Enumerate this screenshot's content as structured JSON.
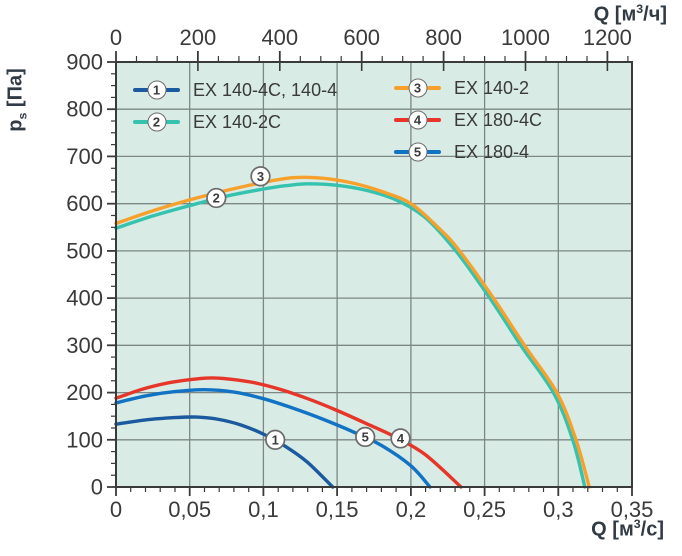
{
  "chart_data": {
    "type": "line",
    "description": "Fan performance curves: static pressure vs air flow",
    "plot_bg_color": "#d9ebe5",
    "grid_color": "#7c8786",
    "axis_color": "#3a3a3a",
    "tick_label_color": "#3a3a3a",
    "title_color": "#323b44",
    "grid": true,
    "y_axis": {
      "label": "pₛ [Па]",
      "label_parts": {
        "base": "p",
        "sub": "s",
        "rest": " [Па]"
      },
      "min": 0,
      "max": 900,
      "major": 100,
      "minor": 25,
      "tick_labels": [
        "0",
        "100",
        "200",
        "300",
        "400",
        "500",
        "600",
        "700",
        "800",
        "900"
      ]
    },
    "x_bottom": {
      "label": "Q [м³/с]",
      "label_parts": {
        "base": "Q [м",
        "sup": "3",
        "rest": "/с]"
      },
      "min": 0,
      "max": 0.35,
      "major": 0.05,
      "minor": 0.01,
      "tick_labels": [
        "0",
        "0,05",
        "0,1",
        "0,15",
        "0,2",
        "0,25",
        "0,3",
        "0,35"
      ]
    },
    "x_top": {
      "label": "Q [м³/ч]",
      "label_parts": {
        "base": "Q [м",
        "sup": "3",
        "rest": "/ч]"
      },
      "min": 0,
      "max": 1260,
      "major": 200,
      "minor": 50,
      "tick_labels": [
        "0",
        "200",
        "400",
        "600",
        "800",
        "1000",
        "1200"
      ]
    },
    "legend": {
      "position": "top-inside",
      "columns": [
        [
          0,
          1
        ],
        [
          2,
          3,
          4
        ]
      ]
    },
    "draw_order": [
      1,
      2,
      0,
      4,
      3
    ],
    "series": [
      {
        "num": "1",
        "label": "EX 140-4C, 140-4",
        "color": "#1b5a9e",
        "marker": {
          "x": 0.108,
          "y": 100
        },
        "points": [
          [
            0,
            133
          ],
          [
            0.02,
            142
          ],
          [
            0.04,
            147
          ],
          [
            0.055,
            148
          ],
          [
            0.07,
            143
          ],
          [
            0.085,
            131
          ],
          [
            0.1,
            112
          ],
          [
            0.115,
            86
          ],
          [
            0.13,
            52
          ],
          [
            0.147,
            0
          ]
        ]
      },
      {
        "num": "2",
        "label": "EX 140-2C",
        "color": "#35c2ae",
        "marker": {
          "x": 0.068,
          "y": 612
        },
        "points": [
          [
            0,
            548
          ],
          [
            0.025,
            574
          ],
          [
            0.05,
            596
          ],
          [
            0.075,
            616
          ],
          [
            0.1,
            631
          ],
          [
            0.115,
            638
          ],
          [
            0.13,
            642
          ],
          [
            0.15,
            639
          ],
          [
            0.17,
            628
          ],
          [
            0.19,
            608
          ],
          [
            0.21,
            570
          ],
          [
            0.231,
            498
          ],
          [
            0.254,
            398
          ],
          [
            0.275,
            298
          ],
          [
            0.297,
            198
          ],
          [
            0.31,
            98
          ],
          [
            0.318,
            0
          ]
        ]
      },
      {
        "num": "3",
        "label": "EX 140-2",
        "color": "#f7a12c",
        "marker": {
          "x": 0.098,
          "y": 658
        },
        "points": [
          [
            0,
            558
          ],
          [
            0.025,
            585
          ],
          [
            0.05,
            608
          ],
          [
            0.075,
            628
          ],
          [
            0.1,
            645
          ],
          [
            0.12,
            655
          ],
          [
            0.14,
            654
          ],
          [
            0.16,
            644
          ],
          [
            0.18,
            626
          ],
          [
            0.2,
            600
          ],
          [
            0.22,
            545
          ],
          [
            0.233,
            500
          ],
          [
            0.256,
            400
          ],
          [
            0.277,
            300
          ],
          [
            0.299,
            200
          ],
          [
            0.312,
            100
          ],
          [
            0.321,
            0
          ]
        ]
      },
      {
        "num": "4",
        "label": "EX 180-4C",
        "color": "#e63529",
        "marker": {
          "x": 0.193,
          "y": 103
        },
        "points": [
          [
            0,
            188
          ],
          [
            0.02,
            209
          ],
          [
            0.04,
            223
          ],
          [
            0.065,
            231
          ],
          [
            0.09,
            223
          ],
          [
            0.11,
            208
          ],
          [
            0.13,
            187
          ],
          [
            0.15,
            162
          ],
          [
            0.17,
            134
          ],
          [
            0.19,
            105
          ],
          [
            0.21,
            68
          ],
          [
            0.234,
            0
          ]
        ]
      },
      {
        "num": "5",
        "label": "EX 180-4",
        "color": "#1273c4",
        "marker": {
          "x": 0.169,
          "y": 106
        },
        "points": [
          [
            0,
            178
          ],
          [
            0.02,
            193
          ],
          [
            0.04,
            202
          ],
          [
            0.06,
            206
          ],
          [
            0.08,
            201
          ],
          [
            0.1,
            187
          ],
          [
            0.12,
            167
          ],
          [
            0.14,
            144
          ],
          [
            0.16,
            118
          ],
          [
            0.18,
            88
          ],
          [
            0.2,
            45
          ],
          [
            0.213,
            0
          ]
        ]
      }
    ]
  }
}
